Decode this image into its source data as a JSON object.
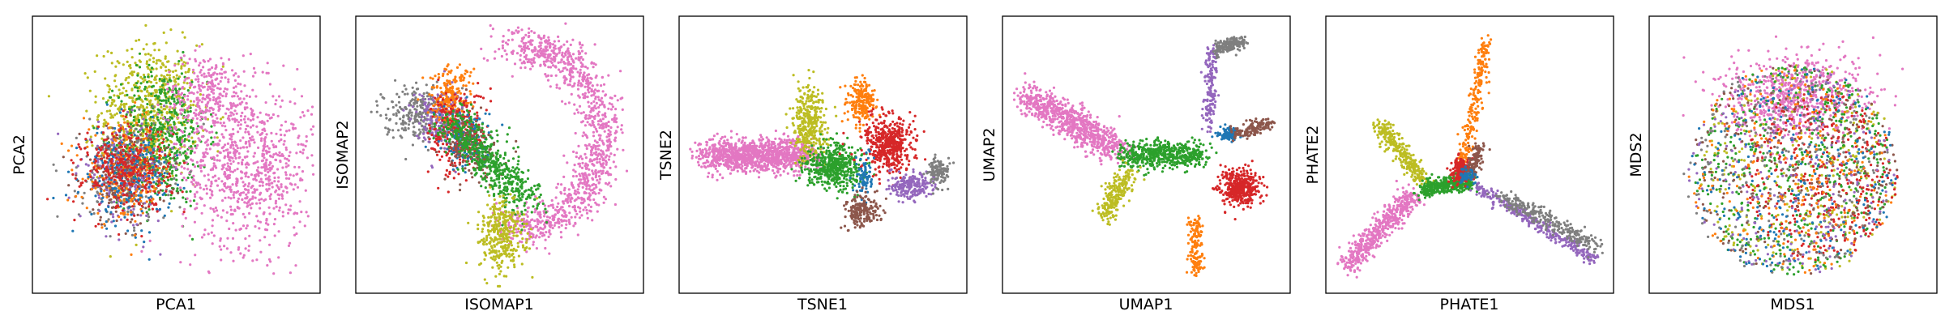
{
  "palette": {
    "blue": "#1f77b4",
    "orange": "#ff7f0e",
    "green": "#2ca02c",
    "red": "#d62728",
    "purple": "#9467bd",
    "brown": "#8c564b",
    "pink": "#e377c2",
    "gray": "#7f7f7f",
    "olive": "#bcbd22"
  },
  "chart_data": [
    {
      "type": "scatter",
      "xlabel": "PCA1",
      "ylabel": "PCA2",
      "xlim": [
        0,
        100
      ],
      "ylim": [
        0,
        100
      ],
      "ticks": "none",
      "grid": false,
      "legend": "none",
      "clusters": [
        {
          "color": "olive",
          "cx": 40,
          "cy": 66,
          "sx": 9,
          "sy": 13,
          "n": 650
        },
        {
          "color": "green",
          "cx": 45,
          "cy": 57,
          "sx": 8,
          "sy": 13,
          "n": 500
        },
        {
          "color": "pink",
          "cx": 76,
          "cy": 45,
          "sx": 12,
          "sy": 15,
          "n": 800
        },
        {
          "color": "pink",
          "cx": 62,
          "cy": 72,
          "sx": 8,
          "sy": 8,
          "n": 300
        },
        {
          "color": "gray",
          "cx": 31,
          "cy": 42,
          "sx": 8,
          "sy": 9,
          "n": 260
        },
        {
          "color": "brown",
          "cx": 31,
          "cy": 42,
          "sx": 8,
          "sy": 9,
          "n": 220
        },
        {
          "color": "purple",
          "cx": 31,
          "cy": 43,
          "sx": 8,
          "sy": 9,
          "n": 200
        },
        {
          "color": "orange",
          "cx": 32,
          "cy": 43,
          "sx": 8,
          "sy": 9,
          "n": 220
        },
        {
          "color": "blue",
          "cx": 32,
          "cy": 42,
          "sx": 8,
          "sy": 9,
          "n": 200
        },
        {
          "color": "red",
          "cx": 32,
          "cy": 45,
          "sx": 8,
          "sy": 8,
          "n": 320
        }
      ]
    },
    {
      "type": "scatter",
      "xlabel": "ISOMAP1",
      "ylabel": "ISOMAP2",
      "xlim": [
        0,
        100
      ],
      "ylim": [
        0,
        100
      ],
      "ticks": "none",
      "grid": false,
      "legend": "none",
      "clusters": [
        {
          "color": "pink",
          "arc": [
            58,
            57,
            29,
            34,
            -100,
            100,
            4
          ],
          "n": 1100
        },
        {
          "color": "gray",
          "cx": 20,
          "cy": 66,
          "sx": 6,
          "sy": 5,
          "n": 260
        },
        {
          "color": "purple",
          "cx": 29,
          "cy": 64,
          "sx": 5,
          "sy": 6,
          "n": 220
        },
        {
          "color": "orange",
          "cx": 32,
          "cy": 72,
          "sx": 4,
          "sy": 6,
          "n": 200
        },
        {
          "color": "red",
          "cx": 35,
          "cy": 58,
          "sx": 5,
          "sy": 8,
          "n": 300
        },
        {
          "color": "blue",
          "cx": 38,
          "cy": 55,
          "sx": 5,
          "sy": 6,
          "n": 120
        },
        {
          "color": "brown",
          "cx": 40,
          "cy": 52,
          "sx": 5,
          "sy": 6,
          "n": 150
        },
        {
          "color": "green",
          "line": [
            33,
            63,
            60,
            32,
            4
          ],
          "n": 550
        },
        {
          "color": "olive",
          "cx": 51,
          "cy": 20,
          "sx": 4,
          "sy": 7,
          "n": 350
        }
      ]
    },
    {
      "type": "scatter",
      "xlabel": "TSNE1",
      "ylabel": "TSNE2",
      "xlim": [
        0,
        100
      ],
      "ylim": [
        0,
        100
      ],
      "ticks": "none",
      "grid": false,
      "legend": "none",
      "clusters": [
        {
          "color": "pink",
          "line": [
            8,
            50,
            45,
            50,
            3.2
          ],
          "n": 1100
        },
        {
          "color": "olive",
          "cx": 45,
          "cy": 62,
          "sx": 3,
          "sy": 7,
          "n": 350
        },
        {
          "color": "orange",
          "cx": 64,
          "cy": 70,
          "sx": 2.5,
          "sy": 4,
          "n": 200
        },
        {
          "color": "green",
          "cx": 54,
          "cy": 46,
          "sx": 5,
          "sy": 4,
          "n": 500
        },
        {
          "color": "red",
          "cx": 74,
          "cy": 54,
          "sx": 4.5,
          "sy": 5,
          "n": 500
        },
        {
          "color": "blue",
          "cx": 65,
          "cy": 42,
          "sx": 1.5,
          "sy": 4,
          "n": 80
        },
        {
          "color": "brown",
          "cx": 64,
          "cy": 29,
          "sx": 3,
          "sy": 3,
          "n": 180
        },
        {
          "color": "purple",
          "cx": 82,
          "cy": 38,
          "sx": 4,
          "sy": 2.5,
          "n": 200
        },
        {
          "color": "gray",
          "cx": 92,
          "cy": 44,
          "sx": 2,
          "sy": 3,
          "n": 120
        }
      ]
    },
    {
      "type": "scatter",
      "xlabel": "UMAP1",
      "ylabel": "UMAP2",
      "xlim": [
        0,
        100
      ],
      "ylim": [
        0,
        100
      ],
      "ticks": "none",
      "grid": false,
      "legend": "none",
      "clusters": [
        {
          "color": "pink",
          "line": [
            6,
            72,
            40,
            52,
            3
          ],
          "n": 800
        },
        {
          "color": "green",
          "line": [
            42,
            50,
            70,
            50,
            2.5
          ],
          "n": 550
        },
        {
          "color": "olive",
          "line": [
            44,
            44,
            35,
            27,
            2
          ],
          "n": 220
        },
        {
          "color": "purple",
          "line": [
            73,
            60,
            74,
            90,
            1.2
          ],
          "n": 160
        },
        {
          "color": "gray",
          "line": [
            75,
            90,
            85,
            93,
            1.5
          ],
          "n": 150
        },
        {
          "color": "blue",
          "cx": 80,
          "cy": 58,
          "sx": 2,
          "sy": 1.5,
          "n": 90
        },
        {
          "color": "brown",
          "line": [
            82,
            58,
            95,
            62,
            1.2
          ],
          "n": 140
        },
        {
          "color": "red",
          "cx": 84,
          "cy": 38,
          "sx": 3.5,
          "sy": 3.5,
          "n": 420
        },
        {
          "color": "orange",
          "line": [
            68,
            25,
            68,
            5,
            1.2
          ],
          "n": 150
        }
      ]
    },
    {
      "type": "scatter",
      "xlabel": "PHATE1",
      "ylabel": "PHATE2",
      "xlim": [
        0,
        100
      ],
      "ylim": [
        0,
        100
      ],
      "ticks": "none",
      "grid": false,
      "legend": "none",
      "clusters": [
        {
          "color": "pink",
          "line": [
            5,
            8,
            30,
            35,
            2.2
          ],
          "n": 500
        },
        {
          "color": "olive",
          "line": [
            17,
            62,
            33,
            40,
            1.6
          ],
          "n": 280
        },
        {
          "color": "green",
          "line": [
            33,
            37,
            50,
            40,
            1.6
          ],
          "n": 400
        },
        {
          "color": "orange",
          "line": [
            47,
            44,
            56,
            93,
            1.2
          ],
          "n": 250
        },
        {
          "color": "red",
          "cx": 47,
          "cy": 44,
          "sx": 1.8,
          "sy": 2.5,
          "n": 200
        },
        {
          "color": "brown",
          "line": [
            50,
            42,
            54,
            53,
            1.2
          ],
          "n": 120
        },
        {
          "color": "blue",
          "cx": 49,
          "cy": 42,
          "sx": 1.5,
          "sy": 1.5,
          "n": 60
        },
        {
          "color": "purple",
          "line": [
            52,
            38,
            96,
            10,
            1.2
          ],
          "n": 300
        },
        {
          "color": "gray",
          "line": [
            60,
            35,
            97,
            15,
            1.6
          ],
          "n": 280
        }
      ]
    },
    {
      "type": "scatter",
      "xlabel": "MDS1",
      "ylabel": "MDS2",
      "xlim": [
        0,
        100
      ],
      "ylim": [
        0,
        100
      ],
      "ticks": "none",
      "grid": false,
      "legend": "none",
      "clusters": [
        {
          "color": "pink",
          "cx": 50,
          "cy": 72,
          "sx": 14,
          "sy": 8,
          "n": 700
        },
        {
          "color": "olive",
          "disc": [
            52,
            44,
            36,
            40
          ],
          "n": 300
        },
        {
          "color": "green",
          "disc": [
            50,
            44,
            36,
            40
          ],
          "n": 450
        },
        {
          "color": "red",
          "disc": [
            60,
            42,
            28,
            32
          ],
          "n": 380
        },
        {
          "color": "gray",
          "disc": [
            48,
            44,
            38,
            40
          ],
          "n": 220
        },
        {
          "color": "brown",
          "disc": [
            50,
            44,
            38,
            40
          ],
          "n": 220
        },
        {
          "color": "purple",
          "disc": [
            50,
            44,
            38,
            40
          ],
          "n": 220
        },
        {
          "color": "orange",
          "disc": [
            50,
            44,
            38,
            40
          ],
          "n": 220
        },
        {
          "color": "blue",
          "disc": [
            50,
            44,
            38,
            40
          ],
          "n": 220
        }
      ]
    }
  ]
}
